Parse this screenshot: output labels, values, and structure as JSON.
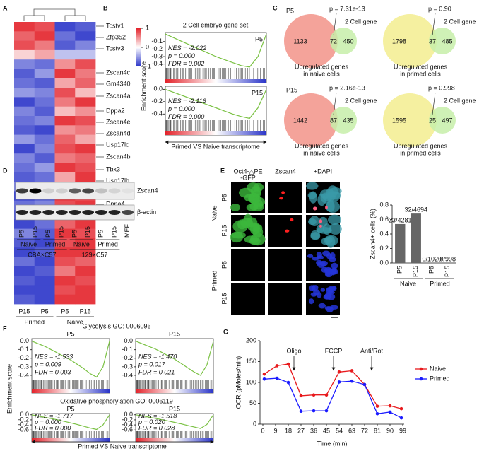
{
  "panel_labels": [
    "A",
    "B",
    "C",
    "D",
    "E",
    "F",
    "G"
  ],
  "heatmap": {
    "genes": [
      "Tcstv1",
      "Zfp352",
      "Tcstv3",
      "Zscan4c",
      "Gm4340",
      "Zscan4a",
      "Dppa2",
      "Zscan4e",
      "Zscan4d",
      "Usp17lc",
      "Zscan4b",
      "Tbx3",
      "Usp17lb",
      "Dppa4"
    ],
    "columns": [
      "P15",
      "P5",
      "P5",
      "P15"
    ],
    "groups": [
      "Primed",
      "Naive"
    ],
    "colorbar_ticks": [
      1,
      0,
      -1
    ],
    "matrix": [
      [
        0.9,
        0.8,
        -0.9,
        -0.8
      ],
      [
        0.7,
        0.9,
        -0.7,
        -0.9
      ],
      [
        0.8,
        0.6,
        -0.8,
        -0.6
      ],
      [
        0.2,
        0.4,
        -0.3,
        -0.3
      ],
      [
        -0.6,
        -0.7,
        0.5,
        0.8
      ],
      [
        -0.8,
        -0.5,
        0.9,
        0.6
      ],
      [
        -0.7,
        -0.8,
        0.4,
        0.7
      ],
      [
        -0.5,
        -0.6,
        0.8,
        0.3
      ],
      [
        -0.9,
        -0.7,
        0.6,
        0.9
      ],
      [
        -0.6,
        -0.8,
        0.3,
        0.5
      ],
      [
        -0.7,
        -0.6,
        0.9,
        0.8
      ],
      [
        -0.8,
        -0.9,
        0.5,
        0.6
      ],
      [
        -0.5,
        -0.7,
        0.7,
        0.4
      ],
      [
        -0.9,
        -0.6,
        0.8,
        0.9
      ],
      [
        -0.6,
        -0.8,
        0.6,
        0.7
      ],
      [
        -0.7,
        -0.5,
        0.9,
        0.8
      ],
      [
        -0.8,
        -0.7,
        0.4,
        0.9
      ],
      [
        -0.6,
        -0.9,
        0.7,
        0.6
      ],
      [
        -0.9,
        -0.8,
        0.9,
        0.8
      ],
      [
        -0.7,
        -0.6,
        0.8,
        0.9
      ],
      [
        -0.8,
        -0.9,
        0.9,
        0.7
      ],
      [
        -0.9,
        -0.7,
        0.7,
        0.9
      ],
      [
        -0.6,
        -0.8,
        0.9,
        0.8
      ],
      [
        -0.8,
        -0.9,
        0.8,
        0.9
      ],
      [
        -0.9,
        -0.8,
        0.9,
        0.9
      ],
      [
        -0.7,
        -0.9,
        0.8,
        0.7
      ],
      [
        -0.9,
        -0.8,
        0.6,
        0.9
      ],
      [
        -0.8,
        -0.9,
        0.9,
        0.8
      ],
      [
        -0.9,
        -0.9,
        0.8,
        0.9
      ],
      [
        -0.8,
        -0.9,
        0.9,
        0.9
      ]
    ]
  },
  "gsea_2cell": {
    "title": "2 Cell embryo gene set",
    "ylabel": "Enrichment score",
    "xlabel": "Primed VS Naive transcriptome",
    "plots": [
      {
        "name": "P5",
        "stats": [
          "NES = -2.022",
          "p = 0.000",
          "FDR = 0.002"
        ],
        "ylim": [
          -0.45,
          0.02
        ],
        "yticks": [
          -0.1,
          -0.2,
          -0.3,
          -0.4
        ],
        "values": [
          0,
          -0.05,
          -0.1,
          -0.15,
          -0.2,
          -0.25,
          -0.3,
          -0.34,
          -0.38,
          -0.42,
          -0.44,
          -0.3,
          0
        ]
      },
      {
        "name": "P15",
        "stats": [
          "NES = -2.116",
          "p = 0.000",
          "FDR = 0.000"
        ],
        "ylim": [
          -0.5,
          0.05
        ],
        "yticks": [
          {
            "value": 0,
            "label": "0.0"
          },
          -0.2,
          -0.4
        ],
        "values": [
          0,
          -0.05,
          -0.1,
          -0.15,
          -0.2,
          -0.25,
          -0.3,
          -0.35,
          -0.4,
          -0.44,
          -0.47,
          -0.3,
          0
        ]
      }
    ]
  },
  "venn": {
    "items": [
      {
        "sample": "P5",
        "p": "p = 7.31e-13",
        "set_label": "2 Cell gene",
        "left": 1133,
        "overlap": 72,
        "right": 450,
        "caption": [
          "Upregulated genes",
          "in naive cells"
        ]
      },
      {
        "p": "p = 0.90",
        "set_label": "2 Cell gene",
        "left": 1798,
        "overlap": 37,
        "right": 485,
        "caption": [
          "Upregulated genes",
          "in primed cells"
        ]
      },
      {
        "sample": "P15",
        "p": "p = 2.16e-13",
        "set_label": "2 Cell gene",
        "left": 1442,
        "overlap": 87,
        "right": 435,
        "caption": [
          "Upregulated genes",
          "in naive cells"
        ]
      },
      {
        "p": "p = 0.998",
        "set_label": "2 Cell gene",
        "left": 1595,
        "overlap": 25,
        "right": 497,
        "caption": [
          "Upregulated genes",
          "in primed cells"
        ]
      }
    ]
  },
  "western": {
    "targets": [
      "Zscan4",
      "β-actin"
    ],
    "lanes": [
      "P5",
      "P15",
      "P5",
      "P15",
      "P5",
      "P15",
      "P5",
      "P15",
      "MEF"
    ],
    "groups": [
      "Naive",
      "Primed",
      "Naive",
      "Primed"
    ],
    "strains": [
      "CBA×C57",
      "129×C57"
    ]
  },
  "imaging": {
    "channels": [
      {
        "lines": [
          "Oct4-△PE",
          "-GFP"
        ],
        "color": "#2aa52a"
      },
      {
        "lines": [
          "Zscan4"
        ],
        "color": "#e01010"
      },
      {
        "lines": [
          "+DAPI"
        ],
        "color": "#1a1aee"
      }
    ],
    "groups": [
      {
        "name": "Naive",
        "rows": [
          "P5",
          "P15"
        ]
      },
      {
        "name": "Primed",
        "rows": [
          "P5",
          "P15"
        ]
      }
    ]
  },
  "gsea_metabolic": {
    "ylabel": "Enrichment score",
    "xlabel": "Primed VS Naive transcriptome",
    "sets": [
      {
        "title": "Glycolysis GO: 0006096",
        "plots": [
          {
            "name": "P5",
            "stats": [
              "NES = -1.533",
              "p = 0.009",
              "FDR = 0.003"
            ],
            "ylim": [
              -0.45,
              0.03
            ],
            "yticks": [
              {
                "value": 0,
                "label": "0.0"
              },
              -0.1,
              -0.2,
              -0.3,
              -0.4
            ],
            "values": [
              0,
              -0.03,
              -0.06,
              -0.1,
              -0.14,
              -0.18,
              -0.22,
              -0.27,
              -0.32,
              -0.38,
              -0.42,
              -0.3,
              0
            ]
          },
          {
            "name": "P15",
            "stats": [
              "NES = -1.470",
              "p = 0.017",
              "FDR = 0.021"
            ],
            "ylim": [
              -0.45,
              0.03
            ],
            "yticks": [
              {
                "value": 0,
                "label": "0.0"
              },
              -0.1,
              -0.2,
              -0.3,
              -0.4
            ],
            "values": [
              0,
              -0.03,
              -0.06,
              -0.09,
              -0.13,
              -0.17,
              -0.21,
              -0.26,
              -0.31,
              -0.36,
              -0.4,
              -0.28,
              0
            ]
          }
        ]
      },
      {
        "title": "Oxidative phosphorylation GO: 0006119",
        "plots": [
          {
            "name": "P5",
            "stats": [
              "NES = -1.717",
              "p = 0.000",
              "FDR = 0.000"
            ],
            "ylim": [
              -0.65,
              0.05
            ],
            "yticks": [
              {
                "value": 0,
                "label": "0.0"
              },
              -0.2,
              -0.4,
              -0.6
            ],
            "values": [
              0,
              -0.05,
              -0.1,
              -0.15,
              -0.2,
              -0.26,
              -0.32,
              -0.38,
              -0.45,
              -0.52,
              -0.58,
              -0.4,
              0
            ]
          },
          {
            "name": "P15",
            "stats": [
              "NES = -1.518",
              "p = 0.020",
              "FDR = 0.028"
            ],
            "ylim": [
              -0.65,
              0.05
            ],
            "yticks": [
              {
                "value": 0,
                "label": "0.0"
              },
              -0.2,
              -0.4,
              -0.6
            ],
            "values": [
              0,
              -0.04,
              -0.09,
              -0.14,
              -0.19,
              -0.24,
              -0.3,
              -0.36,
              -0.42,
              -0.48,
              -0.54,
              -0.38,
              0
            ]
          }
        ]
      }
    ]
  },
  "chart_data": [
    {
      "type": "bar",
      "ylabel": "Zscan4+ cells (%)",
      "categories": [
        "P5",
        "P15",
        "P5",
        "P15"
      ],
      "groups": [
        "Naive",
        "Primed"
      ],
      "values": [
        0.5373,
        0.6817,
        0,
        0
      ],
      "value_labels": [
        "23/4281",
        "32/4694",
        "0/1020",
        "0/998"
      ],
      "color": "#666666",
      "ylim": [
        0,
        0.8
      ],
      "yticks": [
        {
          "value": 0,
          "label": "0.0"
        },
        0.2,
        0.4,
        0.6,
        0.8
      ]
    },
    {
      "type": "line",
      "xlabel": "Time (min)",
      "ylabel": "OCR (pMoles/min)",
      "x": [
        1,
        10,
        18,
        27,
        36,
        45,
        54,
        63,
        72,
        81,
        90,
        98
      ],
      "series": [
        {
          "name": "Naive",
          "color": "#e8191c",
          "values": [
            120,
            140,
            144,
            68,
            70,
            70,
            125,
            128,
            95,
            43,
            44,
            37
          ]
        },
        {
          "name": "Primed",
          "color": "#1a1aff",
          "values": [
            108,
            110,
            100,
            31,
            32,
            32,
            101,
            103,
            95,
            25,
            29,
            15
          ]
        }
      ],
      "xlim": [
        -2,
        100
      ],
      "xticks": [
        0,
        9,
        18,
        27,
        36,
        45,
        54,
        63,
        72,
        81,
        90,
        99
      ],
      "ylim": [
        0,
        200
      ],
      "yticks": [
        0,
        50,
        100,
        150,
        200
      ],
      "annotations": [
        {
          "text": "Oligo",
          "x": 22
        },
        {
          "text": "FCCP",
          "x": 50
        },
        {
          "text": "Anti/Rot",
          "x": 77
        }
      ],
      "legend": "right"
    }
  ]
}
